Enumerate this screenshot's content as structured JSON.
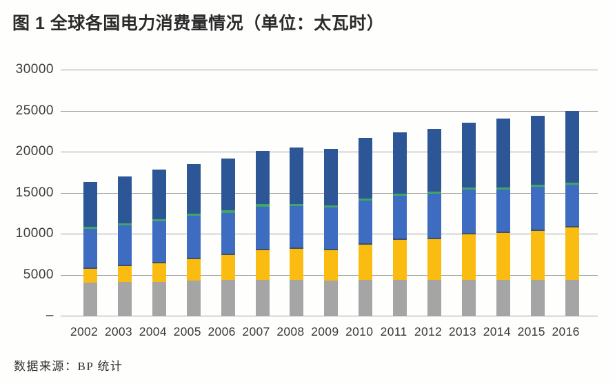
{
  "header": {
    "title": "图 1 全球各国电力消费量情况（单位：太瓦时）"
  },
  "footer": {
    "source": "数据来源：BP 统计"
  },
  "colors": {
    "segment_gray": "#a5a5a5",
    "segment_yellow": "#fbbc12",
    "segment_blue": "#3d6cc0",
    "segment_green": "#41a567",
    "segment_darkblue": "#2c5695",
    "gridline": "#9e9e9e",
    "text": "#3d3d3d"
  },
  "chart_data": {
    "type": "bar",
    "stacked": true,
    "title": "图 1 全球各国电力消费量情况（单位：太瓦时）",
    "unit": "太瓦时",
    "source": "数据来源：BP 统计",
    "legend_position": "none",
    "grid": true,
    "xlabel": "",
    "ylabel": "",
    "ylim": [
      0,
      30000
    ],
    "categories": [
      "2002",
      "2003",
      "2004",
      "2005",
      "2006",
      "2007",
      "2008",
      "2009",
      "2010",
      "2011",
      "2012",
      "2013",
      "2014",
      "2015",
      "2016"
    ],
    "yticks": [
      {
        "value": 30000,
        "label": "30000"
      },
      {
        "value": 25000,
        "label": "25000"
      },
      {
        "value": 20000,
        "label": "20000"
      },
      {
        "value": 15000,
        "label": "15000"
      },
      {
        "value": 10000,
        "label": "10000"
      },
      {
        "value": 5000,
        "label": "5000"
      },
      {
        "value": 0,
        "label": "–"
      }
    ],
    "series": [
      {
        "key": "gray",
        "name": "segment-gray",
        "color": "#a5a5a5",
        "values": [
          4000,
          4080,
          4160,
          4300,
          4350,
          4400,
          4400,
          4250,
          4400,
          4400,
          4350,
          4350,
          4400,
          4350,
          4400
        ]
      },
      {
        "key": "yellow",
        "name": "segment-yellow",
        "color": "#fbbc12",
        "values": [
          1700,
          1950,
          2240,
          2600,
          3050,
          3550,
          3775,
          3700,
          4250,
          4850,
          4980,
          5540,
          5700,
          5990,
          6360
        ]
      },
      {
        "key": "blue",
        "name": "segment-blue",
        "color": "#3d6cc0",
        "values": [
          4900,
          4970,
          5150,
          5250,
          5160,
          5350,
          5225,
          5250,
          5350,
          5350,
          5570,
          5460,
          5300,
          5360,
          5240
        ]
      },
      {
        "key": "green",
        "name": "segment-green",
        "color": "#41a567",
        "values": [
          250,
          250,
          250,
          250,
          280,
          300,
          250,
          250,
          250,
          250,
          250,
          250,
          250,
          250,
          250
        ]
      },
      {
        "key": "darkblue",
        "name": "segment-darkblue",
        "color": "#2c5695",
        "values": [
          5450,
          5750,
          6000,
          6050,
          6360,
          6500,
          6900,
          6900,
          7450,
          7500,
          7650,
          7900,
          8350,
          8450,
          8700
        ]
      }
    ],
    "totals": [
      16300,
      17000,
      17800,
      18450,
      19200,
      20100,
      20550,
      20350,
      21700,
      22350,
      22800,
      23500,
      24000,
      24400,
      24950
    ]
  }
}
